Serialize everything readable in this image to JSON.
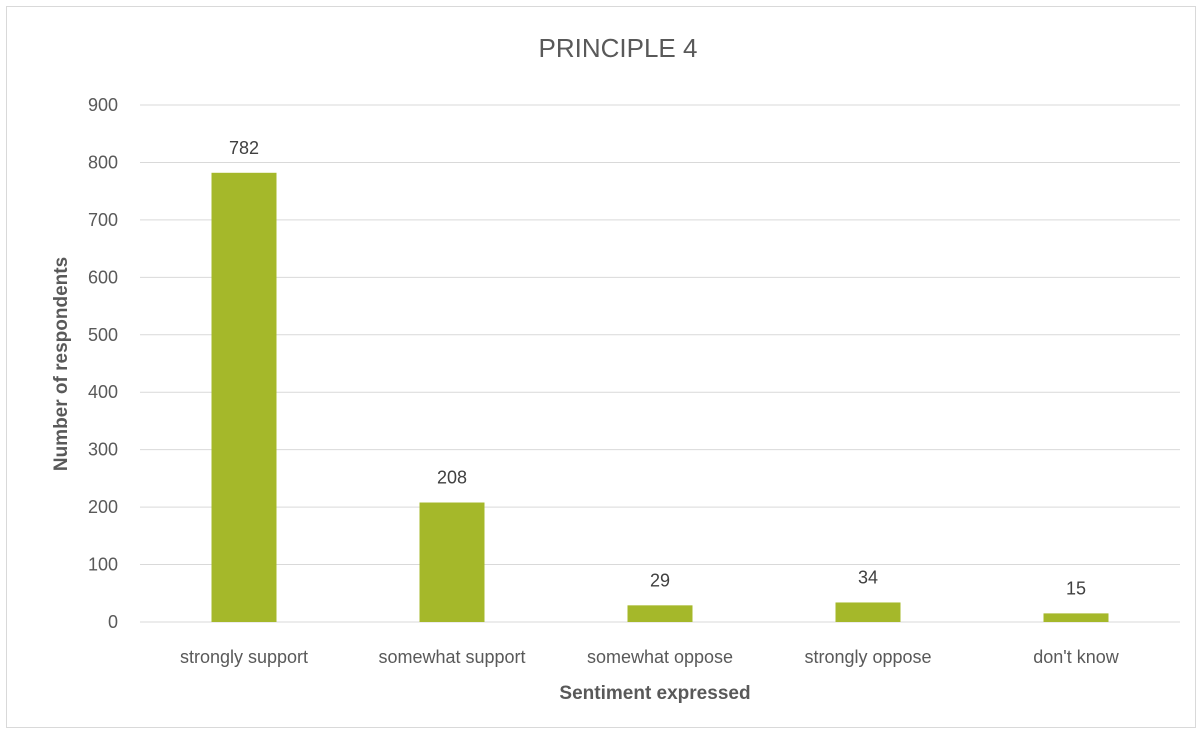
{
  "chart_data": {
    "type": "bar",
    "title": "PRINCIPLE 4",
    "xlabel": "Sentiment expressed",
    "ylabel": "Number of respondents",
    "categories": [
      "strongly support",
      "somewhat support",
      "somewhat oppose",
      "strongly oppose",
      "don't know"
    ],
    "values": [
      782,
      208,
      29,
      34,
      15
    ],
    "data_labels": [
      "782",
      "208",
      "29",
      "34",
      "15"
    ],
    "ylim": [
      0,
      900
    ],
    "yticks": [
      0,
      100,
      200,
      300,
      400,
      500,
      600,
      700,
      800,
      900
    ],
    "grid": true,
    "legend": "none",
    "bar_color": "#a5b82a"
  }
}
